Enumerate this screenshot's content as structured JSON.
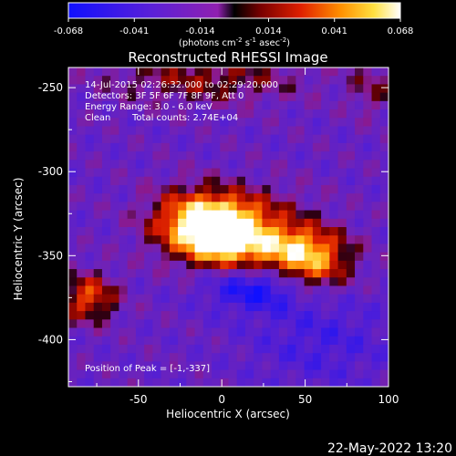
{
  "chart_data": {
    "type": "heatmap",
    "title": "Reconstructed RHESSI Image",
    "colorbar": {
      "ticks": [
        "-0.068",
        "-0.041",
        "-0.014",
        "0.014",
        "0.041",
        "0.068"
      ],
      "range": [
        -0.068,
        0.068
      ],
      "units_text": "(photons cm",
      "units_exp1": "-2",
      "units_mid": " s",
      "units_exp2": "-1",
      "units_end": " asec",
      "units_exp3": "-2",
      "units_close": ")"
    },
    "xlabel": "Heliocentric X (arcsec)",
    "ylabel": "Heliocentric Y (arcsec)",
    "xlim": [
      -92,
      100
    ],
    "ylim": [
      -428,
      -238
    ],
    "xticks": [
      -50,
      0,
      50,
      100
    ],
    "yticks": [
      -250,
      -300,
      -350,
      -400
    ],
    "annotations": {
      "time": "14-Jul-2015 02:26:32.000 to 02:29:20.000",
      "detectors": "Detectors: 3F 5F 6F 7F 8F 9F, Att 0",
      "energy": "Energy Range: 3.0 - 6.0 keV",
      "method": "Clean",
      "counts": "Total counts: 2.74E+04",
      "peak": "Position of Peak = [-1,-337]"
    },
    "peak": {
      "x": -1,
      "y": -337
    },
    "date_stamp": "22-May-2022 13:20"
  }
}
